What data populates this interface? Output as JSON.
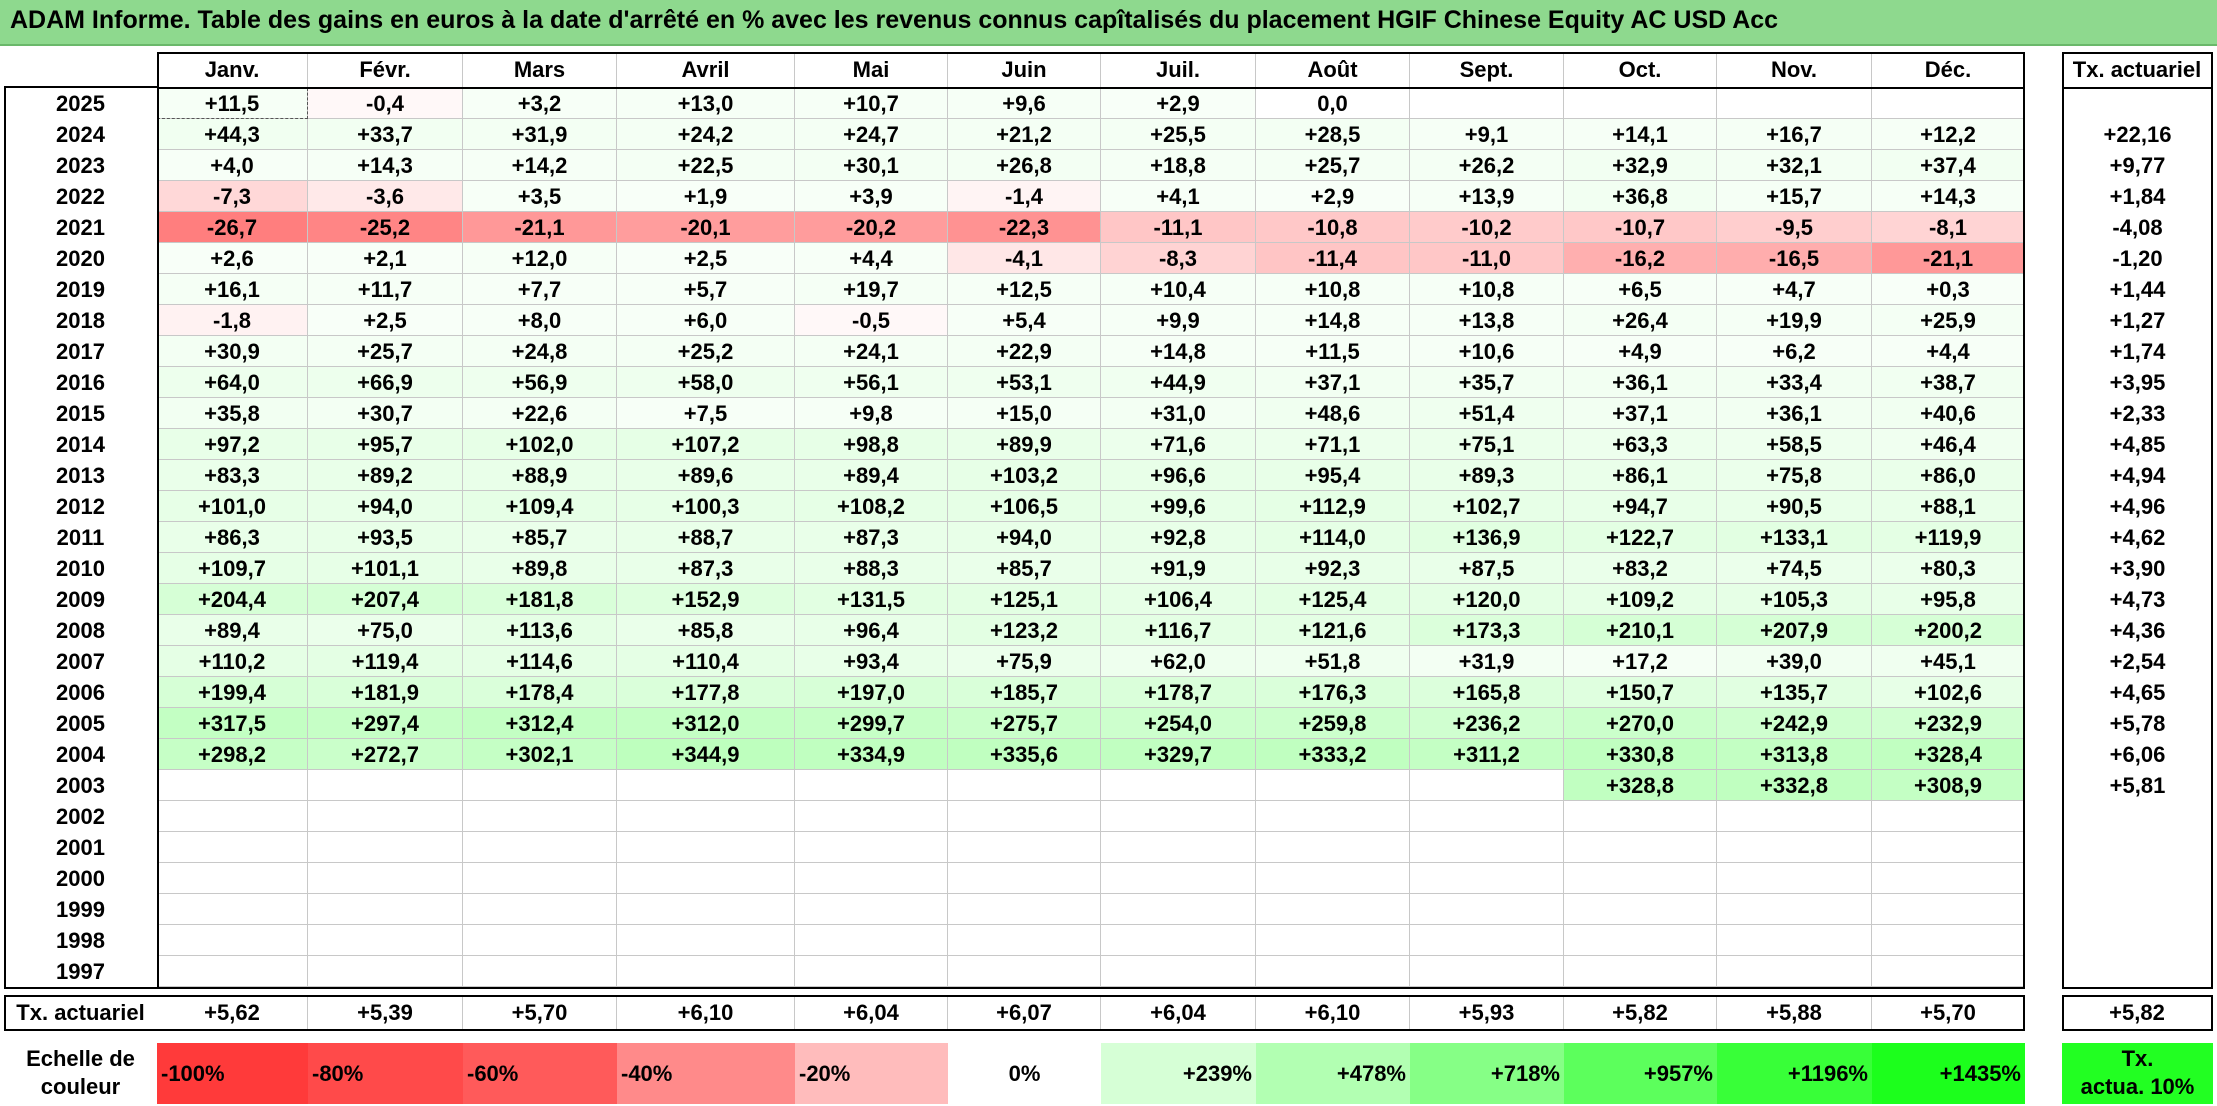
{
  "title": "ADAM Informe. Table des gains en euros à la date d'arrêté en % avec les revenus connus capîtalisés du placement HGIF Chinese Equity AC USD Acc",
  "months": [
    "Janv.",
    "Févr.",
    "Mars",
    "Avril",
    "Mai",
    "Juin",
    "Juil.",
    "Août",
    "Sept.",
    "Oct.",
    "Nov.",
    "Déc."
  ],
  "tx_header": "Tx. actuariel",
  "rows": [
    {
      "year": "2025",
      "values": [
        "+11,5",
        "-0,4",
        "+3,2",
        "+13,0",
        "+10,7",
        "+9,6",
        "+2,9",
        "0,0",
        "",
        "",
        "",
        ""
      ],
      "tx": ""
    },
    {
      "year": "2024",
      "values": [
        "+44,3",
        "+33,7",
        "+31,9",
        "+24,2",
        "+24,7",
        "+21,2",
        "+25,5",
        "+28,5",
        "+9,1",
        "+14,1",
        "+16,7",
        "+12,2"
      ],
      "tx": "+22,16"
    },
    {
      "year": "2023",
      "values": [
        "+4,0",
        "+14,3",
        "+14,2",
        "+22,5",
        "+30,1",
        "+26,8",
        "+18,8",
        "+25,7",
        "+26,2",
        "+32,9",
        "+32,1",
        "+37,4"
      ],
      "tx": "+9,77"
    },
    {
      "year": "2022",
      "values": [
        "-7,3",
        "-3,6",
        "+3,5",
        "+1,9",
        "+3,9",
        "-1,4",
        "+4,1",
        "+2,9",
        "+13,9",
        "+36,8",
        "+15,7",
        "+14,3"
      ],
      "tx": "+1,84"
    },
    {
      "year": "2021",
      "values": [
        "-26,7",
        "-25,2",
        "-21,1",
        "-20,1",
        "-20,2",
        "-22,3",
        "-11,1",
        "-10,8",
        "-10,2",
        "-10,7",
        "-9,5",
        "-8,1"
      ],
      "tx": "-4,08"
    },
    {
      "year": "2020",
      "values": [
        "+2,6",
        "+2,1",
        "+12,0",
        "+2,5",
        "+4,4",
        "-4,1",
        "-8,3",
        "-11,4",
        "-11,0",
        "-16,2",
        "-16,5",
        "-21,1"
      ],
      "tx": "-1,20"
    },
    {
      "year": "2019",
      "values": [
        "+16,1",
        "+11,7",
        "+7,7",
        "+5,7",
        "+19,7",
        "+12,5",
        "+10,4",
        "+10,8",
        "+10,8",
        "+6,5",
        "+4,7",
        "+0,3"
      ],
      "tx": "+1,44"
    },
    {
      "year": "2018",
      "values": [
        "-1,8",
        "+2,5",
        "+8,0",
        "+6,0",
        "-0,5",
        "+5,4",
        "+9,9",
        "+14,8",
        "+13,8",
        "+26,4",
        "+19,9",
        "+25,9"
      ],
      "tx": "+1,27"
    },
    {
      "year": "2017",
      "values": [
        "+30,9",
        "+25,7",
        "+24,8",
        "+25,2",
        "+24,1",
        "+22,9",
        "+14,8",
        "+11,5",
        "+10,6",
        "+4,9",
        "+6,2",
        "+4,4"
      ],
      "tx": "+1,74"
    },
    {
      "year": "2016",
      "values": [
        "+64,0",
        "+66,9",
        "+56,9",
        "+58,0",
        "+56,1",
        "+53,1",
        "+44,9",
        "+37,1",
        "+35,7",
        "+36,1",
        "+33,4",
        "+38,7"
      ],
      "tx": "+3,95"
    },
    {
      "year": "2015",
      "values": [
        "+35,8",
        "+30,7",
        "+22,6",
        "+7,5",
        "+9,8",
        "+15,0",
        "+31,0",
        "+48,6",
        "+51,4",
        "+37,1",
        "+36,1",
        "+40,6"
      ],
      "tx": "+2,33"
    },
    {
      "year": "2014",
      "values": [
        "+97,2",
        "+95,7",
        "+102,0",
        "+107,2",
        "+98,8",
        "+89,9",
        "+71,6",
        "+71,1",
        "+75,1",
        "+63,3",
        "+58,5",
        "+46,4"
      ],
      "tx": "+4,85"
    },
    {
      "year": "2013",
      "values": [
        "+83,3",
        "+89,2",
        "+88,9",
        "+89,6",
        "+89,4",
        "+103,2",
        "+96,6",
        "+95,4",
        "+89,3",
        "+86,1",
        "+75,8",
        "+86,0"
      ],
      "tx": "+4,94"
    },
    {
      "year": "2012",
      "values": [
        "+101,0",
        "+94,0",
        "+109,4",
        "+100,3",
        "+108,2",
        "+106,5",
        "+99,6",
        "+112,9",
        "+102,7",
        "+94,7",
        "+90,5",
        "+88,1"
      ],
      "tx": "+4,96"
    },
    {
      "year": "2011",
      "values": [
        "+86,3",
        "+93,5",
        "+85,7",
        "+88,7",
        "+87,3",
        "+94,0",
        "+92,8",
        "+114,0",
        "+136,9",
        "+122,7",
        "+133,1",
        "+119,9"
      ],
      "tx": "+4,62"
    },
    {
      "year": "2010",
      "values": [
        "+109,7",
        "+101,1",
        "+89,8",
        "+87,3",
        "+88,3",
        "+85,7",
        "+91,9",
        "+92,3",
        "+87,5",
        "+83,2",
        "+74,5",
        "+80,3"
      ],
      "tx": "+3,90"
    },
    {
      "year": "2009",
      "values": [
        "+204,4",
        "+207,4",
        "+181,8",
        "+152,9",
        "+131,5",
        "+125,1",
        "+106,4",
        "+125,4",
        "+120,0",
        "+109,2",
        "+105,3",
        "+95,8"
      ],
      "tx": "+4,73"
    },
    {
      "year": "2008",
      "values": [
        "+89,4",
        "+75,0",
        "+113,6",
        "+85,8",
        "+96,4",
        "+123,2",
        "+116,7",
        "+121,6",
        "+173,3",
        "+210,1",
        "+207,9",
        "+200,2"
      ],
      "tx": "+4,36"
    },
    {
      "year": "2007",
      "values": [
        "+110,2",
        "+119,4",
        "+114,6",
        "+110,4",
        "+93,4",
        "+75,9",
        "+62,0",
        "+51,8",
        "+31,9",
        "+17,2",
        "+39,0",
        "+45,1"
      ],
      "tx": "+2,54"
    },
    {
      "year": "2006",
      "values": [
        "+199,4",
        "+181,9",
        "+178,4",
        "+177,8",
        "+197,0",
        "+185,7",
        "+178,7",
        "+176,3",
        "+165,8",
        "+150,7",
        "+135,7",
        "+102,6"
      ],
      "tx": "+4,65"
    },
    {
      "year": "2005",
      "values": [
        "+317,5",
        "+297,4",
        "+312,4",
        "+312,0",
        "+299,7",
        "+275,7",
        "+254,0",
        "+259,8",
        "+236,2",
        "+270,0",
        "+242,9",
        "+232,9"
      ],
      "tx": "+5,78"
    },
    {
      "year": "2004",
      "values": [
        "+298,2",
        "+272,7",
        "+302,1",
        "+344,9",
        "+334,9",
        "+335,6",
        "+329,7",
        "+333,2",
        "+311,2",
        "+330,8",
        "+313,8",
        "+328,4"
      ],
      "tx": "+6,06"
    },
    {
      "year": "2003",
      "values": [
        "",
        "",
        "",
        "",
        "",
        "",
        "",
        "",
        "",
        "+328,8",
        "+332,8",
        "+308,9"
      ],
      "tx": "+5,81"
    },
    {
      "year": "2002",
      "values": [
        "",
        "",
        "",
        "",
        "",
        "",
        "",
        "",
        "",
        "",
        "",
        ""
      ],
      "tx": ""
    },
    {
      "year": "2001",
      "values": [
        "",
        "",
        "",
        "",
        "",
        "",
        "",
        "",
        "",
        "",
        "",
        ""
      ],
      "tx": ""
    },
    {
      "year": "2000",
      "values": [
        "",
        "",
        "",
        "",
        "",
        "",
        "",
        "",
        "",
        "",
        "",
        ""
      ],
      "tx": ""
    },
    {
      "year": "1999",
      "values": [
        "",
        "",
        "",
        "",
        "",
        "",
        "",
        "",
        "",
        "",
        "",
        ""
      ],
      "tx": ""
    },
    {
      "year": "1998",
      "values": [
        "",
        "",
        "",
        "",
        "",
        "",
        "",
        "",
        "",
        "",
        "",
        ""
      ],
      "tx": ""
    },
    {
      "year": "1997",
      "values": [
        "",
        "",
        "",
        "",
        "",
        "",
        "",
        "",
        "",
        "",
        "",
        ""
      ],
      "tx": ""
    }
  ],
  "footer": {
    "label": "Tx. actuariel",
    "values": [
      "+5,62",
      "+5,39",
      "+5,70",
      "+6,10",
      "+6,04",
      "+6,07",
      "+6,04",
      "+6,10",
      "+5,93",
      "+5,82",
      "+5,88",
      "+5,70"
    ],
    "tx": "+5,82"
  },
  "scale": {
    "label_line1": "Echelle de",
    "label_line2": "couleur",
    "items": [
      {
        "text": "-100%",
        "color": "#ff3a3a"
      },
      {
        "text": "-80%",
        "color": "#ff4a4a"
      },
      {
        "text": "-60%",
        "color": "#ff5a5a"
      },
      {
        "text": "-40%",
        "color": "#ff8a8a"
      },
      {
        "text": "-20%",
        "color": "#ffbcbc"
      },
      {
        "text": "0%",
        "color": "#ffffff"
      },
      {
        "text": "+239%",
        "color": "#d6ffd6"
      },
      {
        "text": "+478%",
        "color": "#b2ffb2"
      },
      {
        "text": "+718%",
        "color": "#86ff86"
      },
      {
        "text": "+957%",
        "color": "#5cff5c"
      },
      {
        "text": "+1196%",
        "color": "#38ff38"
      },
      {
        "text": "+1435%",
        "color": "#1cff1c"
      }
    ],
    "tx_line1": "Tx.",
    "tx_line2": "actua. 10%",
    "tx_color": "#22ff22"
  }
}
